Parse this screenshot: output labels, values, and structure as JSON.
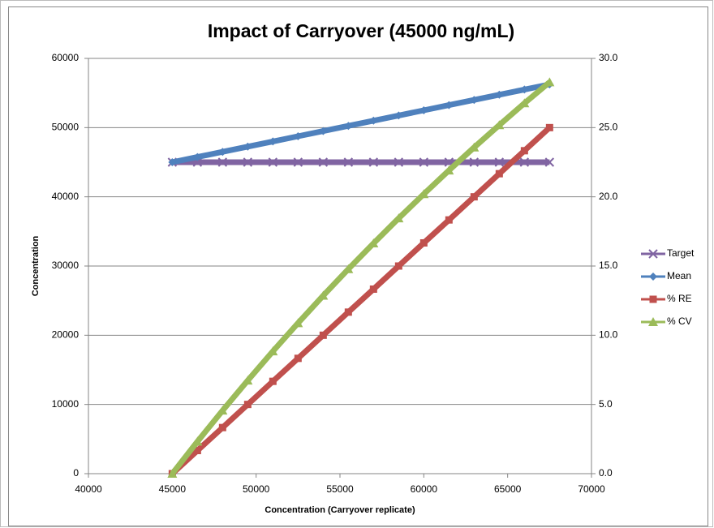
{
  "chart_data": {
    "type": "scatter-line",
    "title": "Impact of Carryover (45000 ng/mL)",
    "x_label": "Concentration (Carryover replicate)",
    "y_label": "Concentration",
    "x": [
      45000,
      46500,
      48000,
      49500,
      51000,
      52500,
      54000,
      55500,
      57000,
      58500,
      60000,
      61500,
      63000,
      64500,
      66000,
      67500
    ],
    "series": [
      {
        "name": "Target",
        "color": "#8064A2",
        "marker": "x",
        "values": [
          45000,
          45000,
          45000,
          45000,
          45000,
          45000,
          45000,
          45000,
          45000,
          45000,
          45000,
          45000,
          45000,
          45000,
          45000,
          45000
        ]
      },
      {
        "name": "Mean",
        "color": "#4F81BD",
        "marker": "diamond",
        "values": [
          45000,
          45750,
          46500,
          47250,
          48000,
          48750,
          49500,
          50250,
          51000,
          51750,
          52500,
          53250,
          54000,
          54750,
          55500,
          56250
        ]
      },
      {
        "name": "% RE",
        "color": "#C0504D",
        "marker": "square",
        "axis": "y2",
        "values": [
          0,
          1.67,
          3.33,
          5,
          6.67,
          8.33,
          10,
          11.67,
          13.33,
          15,
          16.67,
          18.33,
          20,
          21.67,
          23.33,
          25
        ]
      },
      {
        "name": "% CV",
        "color": "#9BBB59",
        "marker": "triangle",
        "axis": "y2",
        "values": [
          0,
          2.32,
          4.56,
          6.73,
          8.84,
          10.88,
          12.86,
          14.78,
          16.64,
          18.45,
          20.2,
          21.91,
          23.57,
          25.18,
          26.76,
          28.28
        ]
      }
    ],
    "xlim": [
      40000,
      70000
    ],
    "xticks": [
      40000,
      45000,
      50000,
      55000,
      60000,
      65000,
      70000
    ],
    "ylim": [
      0,
      60000
    ],
    "yticks": [
      0,
      10000,
      20000,
      30000,
      40000,
      50000,
      60000
    ],
    "y2lim": [
      0,
      30
    ],
    "y2ticks": [
      {
        "value": 0,
        "label": "0.0"
      },
      {
        "value": 5,
        "label": "5.0"
      },
      {
        "value": 10,
        "label": "10.0"
      },
      {
        "value": 15,
        "label": "15.0"
      },
      {
        "value": 20,
        "label": "20.0"
      },
      {
        "value": 25,
        "label": "25.0"
      },
      {
        "value": 30,
        "label": "30.0"
      }
    ],
    "grid": true,
    "legend": "right"
  }
}
